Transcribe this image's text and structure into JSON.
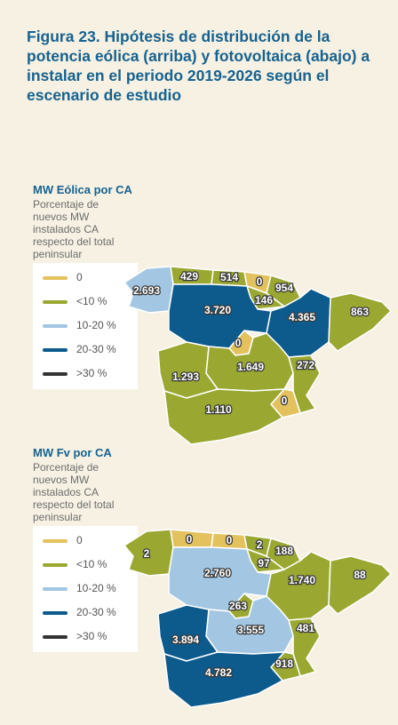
{
  "title": "Figura 23. Hipótesis de distribución de la potencia eólica (arriba) y fotovoltaica (abajo) a instalar en el periodo 2019-2026 según el escenario de estudio",
  "maps": [
    {
      "heading": "MW Eólica por CA",
      "subtitle": "Porcentaje de nuevos MW instalados CA respecto del total peninsular",
      "legend": [
        {
          "label": "0",
          "color": "#e3c25e"
        },
        {
          "label": "<10 %",
          "color": "#9aa831"
        },
        {
          "label": "10-20 %",
          "color": "#a3c6e2"
        },
        {
          "label": "20-30 %",
          "color": "#0d5a8c"
        },
        {
          "label": ">30 %",
          "color": "#333333"
        }
      ],
      "regions": [
        {
          "label": "2.693",
          "color": "#a3c6e2"
        },
        {
          "label": "429",
          "color": "#9aa831"
        },
        {
          "label": "514",
          "color": "#9aa831"
        },
        {
          "label": "0",
          "color": "#e3c25e"
        },
        {
          "label": "954",
          "color": "#9aa831"
        },
        {
          "label": "146",
          "color": "#9aa831"
        },
        {
          "label": "3.720",
          "color": "#0d5a8c"
        },
        {
          "label": "4.365",
          "color": "#0d5a8c"
        },
        {
          "label": "863",
          "color": "#9aa831"
        },
        {
          "label": "0",
          "color": "#e3c25e"
        },
        {
          "label": "1.649",
          "color": "#9aa831"
        },
        {
          "label": "272",
          "color": "#9aa831"
        },
        {
          "label": "0",
          "color": "#e3c25e"
        },
        {
          "label": "1.293",
          "color": "#9aa831"
        },
        {
          "label": "1.110",
          "color": "#9aa831"
        }
      ]
    },
    {
      "heading": "MW Fv por CA",
      "subtitle": "Porcentaje de nuevos MW instalados CA respecto del total peninsular",
      "legend": [
        {
          "label": "0",
          "color": "#e3c25e"
        },
        {
          "label": "<10 %",
          "color": "#9aa831"
        },
        {
          "label": "10-20 %",
          "color": "#a3c6e2"
        },
        {
          "label": "20-30 %",
          "color": "#0d5a8c"
        },
        {
          "label": ">30 %",
          "color": "#333333"
        }
      ],
      "regions": [
        {
          "label": "2",
          "color": "#9aa831"
        },
        {
          "label": "0",
          "color": "#e3c25e"
        },
        {
          "label": "0",
          "color": "#e3c25e"
        },
        {
          "label": "2",
          "color": "#9aa831"
        },
        {
          "label": "188",
          "color": "#9aa831"
        },
        {
          "label": "97",
          "color": "#9aa831"
        },
        {
          "label": "2.760",
          "color": "#a3c6e2"
        },
        {
          "label": "1.740",
          "color": "#9aa831"
        },
        {
          "label": "88",
          "color": "#9aa831"
        },
        {
          "label": "263",
          "color": "#9aa831"
        },
        {
          "label": "3.555",
          "color": "#a3c6e2"
        },
        {
          "label": "481",
          "color": "#9aa831"
        },
        {
          "label": "918",
          "color": "#9aa831"
        },
        {
          "label": "3.894",
          "color": "#0d5a8c"
        },
        {
          "label": "4.782",
          "color": "#0d5a8c"
        }
      ]
    }
  ]
}
